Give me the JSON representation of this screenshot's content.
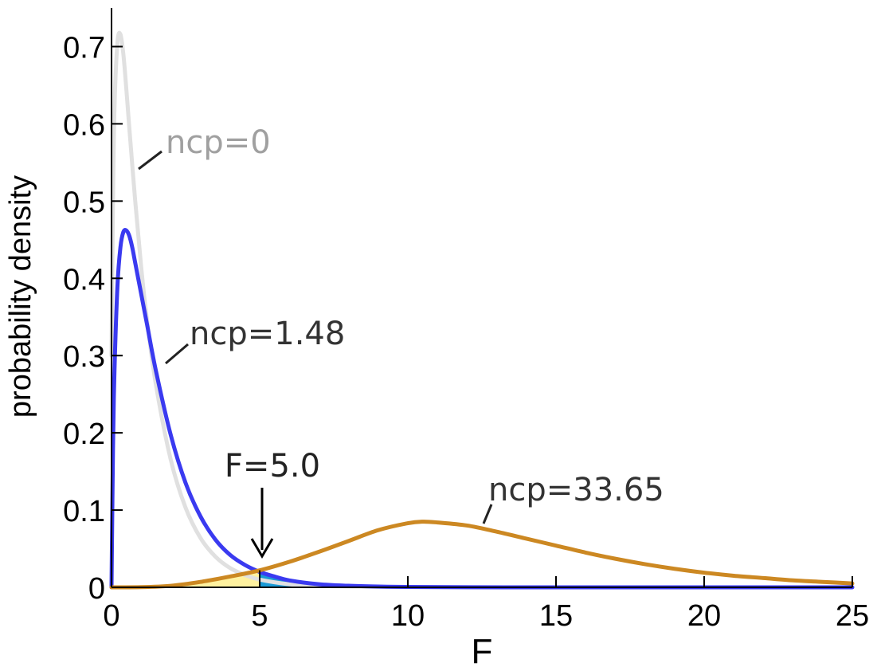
{
  "chart_data": {
    "type": "line",
    "title": "",
    "xlabel": "F",
    "ylabel": "probability density",
    "xlim": [
      0,
      25
    ],
    "ylim": [
      0,
      0.75
    ],
    "grid": false,
    "x_ticks": [
      "0",
      "5",
      "10",
      "15",
      "20",
      "25"
    ],
    "y_ticks": [
      "0",
      "0.1",
      "0.2",
      "0.3",
      "0.4",
      "0.5",
      "0.6",
      "0.7"
    ],
    "series": [
      {
        "name": "ncp=0",
        "color": "#e0e0e0",
        "label_color": "#a0a0a0",
        "x": [
          0,
          0.05,
          0.1,
          0.2,
          0.3,
          0.4,
          0.5,
          0.6,
          0.8,
          1.0,
          1.2,
          1.5,
          2.0,
          2.5,
          3.0,
          3.5,
          4.0,
          4.5,
          5.0,
          6.0,
          7.0,
          8.0,
          10.0,
          15.0,
          20.0,
          25.0
        ],
        "y": [
          0.3,
          0.5,
          0.62,
          0.705,
          0.716,
          0.69,
          0.645,
          0.595,
          0.5,
          0.415,
          0.345,
          0.262,
          0.165,
          0.103,
          0.064,
          0.04,
          0.025,
          0.016,
          0.01,
          0.004,
          0.002,
          0.001,
          0.0002,
          0.0,
          0.0,
          0.0
        ]
      },
      {
        "name": "ncp=1.48",
        "color": "#3a3af0",
        "label_color": "#333333",
        "x": [
          0,
          0.05,
          0.1,
          0.2,
          0.3,
          0.4,
          0.5,
          0.6,
          0.7,
          0.8,
          1.0,
          1.2,
          1.5,
          2.0,
          2.5,
          3.0,
          3.5,
          4.0,
          4.5,
          5.0,
          5.5,
          6.0,
          7.0,
          8.0,
          9.0,
          10.0,
          12.0,
          15.0,
          20.0,
          25.0
        ],
        "y": [
          0.0,
          0.18,
          0.28,
          0.39,
          0.44,
          0.46,
          0.462,
          0.455,
          0.44,
          0.42,
          0.38,
          0.34,
          0.28,
          0.197,
          0.135,
          0.092,
          0.062,
          0.042,
          0.029,
          0.02,
          0.014,
          0.009,
          0.004,
          0.002,
          0.001,
          0.0005,
          0.0001,
          0.0,
          0.0,
          0.0
        ]
      },
      {
        "name": "ncp=33.65",
        "color": "#cc8822",
        "label_color": "#333333",
        "x": [
          0,
          1,
          2,
          3,
          4,
          5,
          6,
          7,
          8,
          9,
          10,
          10.5,
          11,
          12,
          13,
          14,
          15,
          16,
          17,
          18,
          19,
          20,
          21,
          22,
          23,
          24,
          25
        ],
        "y": [
          0.0,
          0.0002,
          0.002,
          0.007,
          0.014,
          0.022,
          0.033,
          0.046,
          0.06,
          0.074,
          0.083,
          0.085,
          0.084,
          0.08,
          0.072,
          0.063,
          0.054,
          0.045,
          0.037,
          0.03,
          0.024,
          0.019,
          0.015,
          0.012,
          0.009,
          0.007,
          0.005
        ]
      }
    ],
    "shaded_regions": [
      {
        "series": "ncp=33.65",
        "from": 0,
        "to": 5,
        "color": "#fff2a0"
      },
      {
        "series": "ncp=1.48",
        "from": 5,
        "to": 25,
        "color": "#1a9ad6"
      }
    ],
    "annotations": [
      {
        "text": "F=5.0",
        "x": 5.0,
        "arrow": true
      }
    ]
  }
}
